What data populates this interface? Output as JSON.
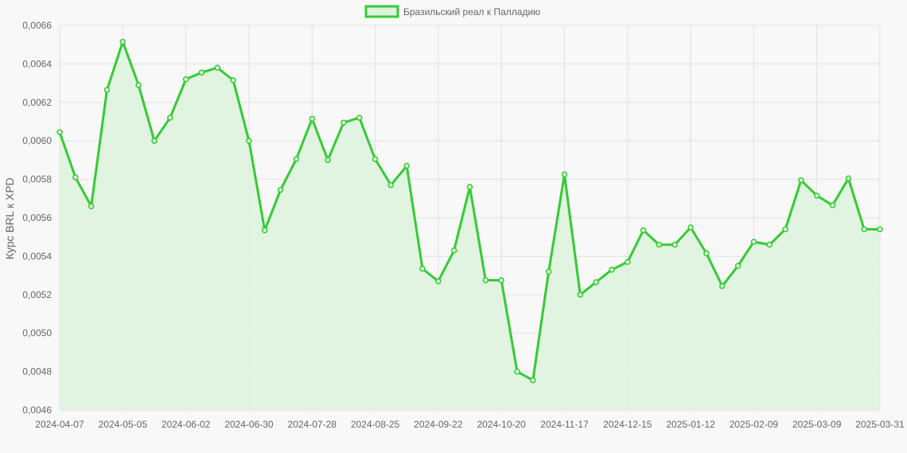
{
  "chart_data": {
    "type": "line",
    "title": "",
    "xlabel": "",
    "ylabel": "Курс BRL к XPD",
    "ylim": [
      0.0046,
      0.0066
    ],
    "y_ticks": [
      "0,0046",
      "0,0048",
      "0,0050",
      "0,0052",
      "0,0054",
      "0,0056",
      "0,0058",
      "0,0060",
      "0,0062",
      "0,0064",
      "0,0066"
    ],
    "x_ticks": [
      "2024-04-07",
      "2024-05-05",
      "2024-06-02",
      "2024-06-30",
      "2024-07-28",
      "2024-08-25",
      "2024-09-22",
      "2024-10-20",
      "2024-11-17",
      "2024-12-15",
      "2025-01-12",
      "2025-02-09",
      "2025-03-09",
      "2025-03-31"
    ],
    "legend": "top-center",
    "grid": true,
    "colors": {
      "line": "#33cc33",
      "fill": "#dff2df",
      "legend_fill": "#dff2df",
      "grid": "#e0e0e0",
      "background": "#f8f8f8"
    },
    "series": [
      {
        "name": "Бразильский реал к Палладию",
        "values": [
          0.006045,
          0.00581,
          0.00566,
          0.006265,
          0.006515,
          0.00629,
          0.006,
          0.00612,
          0.00632,
          0.006355,
          0.00638,
          0.006315,
          0.006,
          0.005535,
          0.005745,
          0.005905,
          0.006115,
          0.0059,
          0.006095,
          0.00612,
          0.005905,
          0.00577,
          0.00587,
          0.005335,
          0.00527,
          0.00543,
          0.00576,
          0.005275,
          0.005275,
          0.0048,
          0.004755,
          0.00532,
          0.005825,
          0.0052,
          0.005265,
          0.00533,
          0.00537,
          0.005535,
          0.00546,
          0.00546,
          0.00555,
          0.005415,
          0.005245,
          0.00535,
          0.005475,
          0.00546,
          0.00554,
          0.005795,
          0.005715,
          0.005665,
          0.005805,
          0.00554,
          0.00554
        ]
      }
    ]
  }
}
